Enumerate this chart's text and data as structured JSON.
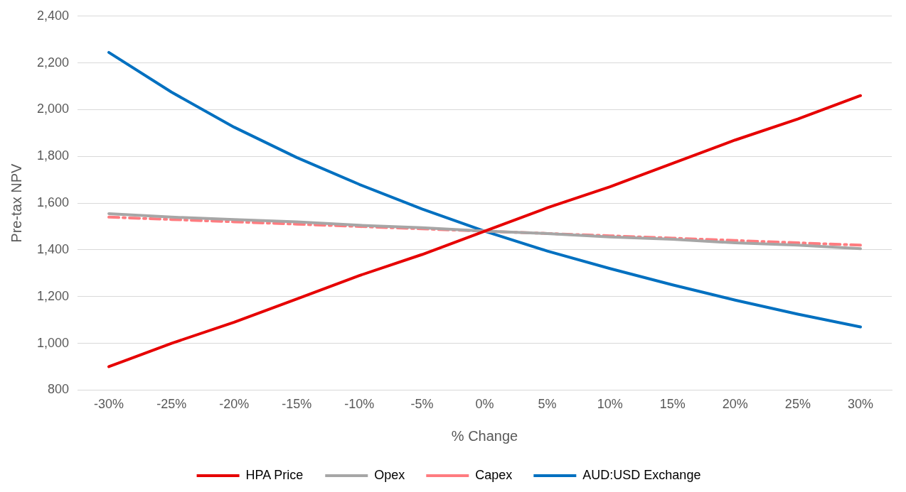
{
  "chart_data": {
    "type": "line",
    "xlabel": "% Change",
    "ylabel": "Pre-tax NPV",
    "categories": [
      "-30%",
      "-25%",
      "-20%",
      "-15%",
      "-10%",
      "-5%",
      "0%",
      "5%",
      "10%",
      "15%",
      "20%",
      "25%",
      "30%"
    ],
    "series": [
      {
        "name": "HPA Price",
        "color": "#e60000",
        "values": [
          900,
          1000,
          1090,
          1190,
          1290,
          1380,
          1480,
          1580,
          1670,
          1770,
          1870,
          1960,
          2060
        ]
      },
      {
        "name": "Opex",
        "color": "#a6a6a6",
        "values": [
          1555,
          1540,
          1530,
          1520,
          1505,
          1495,
          1480,
          1470,
          1455,
          1445,
          1430,
          1420,
          1405
        ]
      },
      {
        "name": "Capex",
        "color": "#ff7c80",
        "line_style": "dashed",
        "values": [
          1540,
          1530,
          1520,
          1510,
          1500,
          1490,
          1480,
          1470,
          1460,
          1450,
          1440,
          1430,
          1420
        ]
      },
      {
        "name": "AUD:USD Exchange",
        "color": "#0070c0",
        "values": [
          2245,
          2075,
          1925,
          1795,
          1680,
          1575,
          1480,
          1395,
          1320,
          1250,
          1185,
          1125,
          1070
        ]
      }
    ],
    "ylim": [
      800,
      2400
    ],
    "yticks": [
      {
        "value": 800,
        "label": "800"
      },
      {
        "value": 1000,
        "label": "1,000"
      },
      {
        "value": 1200,
        "label": "1,200"
      },
      {
        "value": 1400,
        "label": "1,400"
      },
      {
        "value": 1600,
        "label": "1,600"
      },
      {
        "value": 1800,
        "label": "1,800"
      },
      {
        "value": 2000,
        "label": "2,000"
      },
      {
        "value": 2200,
        "label": "2,200"
      },
      {
        "value": 2400,
        "label": "2,400"
      }
    ],
    "grid": "y",
    "legend": "bottom",
    "marker": "none",
    "line_style": "solid"
  }
}
